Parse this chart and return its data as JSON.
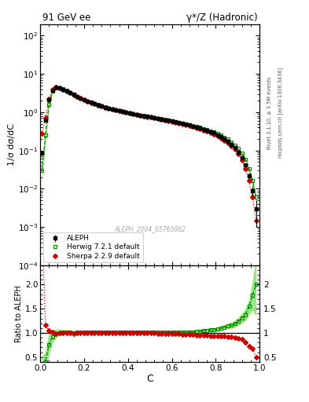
{
  "title_left": "91 GeV ee",
  "title_right": "γ*/Z (Hadronic)",
  "ylabel_main": "1/σ dσ/dC",
  "ylabel_ratio": "Ratio to ALEPH",
  "xlabel": "C",
  "watermark": "ALEPH_2004_S5765862",
  "right_label_top": "Rivet 3.1.10, ≥ 3.5M events",
  "right_label_bot": "mcplots.cern.ch [arXiv:1306.3436]",
  "ylim_main": [
    0.0001,
    200
  ],
  "ylim_ratio": [
    0.4,
    2.4
  ],
  "aleph_x": [
    0.008,
    0.024,
    0.04,
    0.056,
    0.072,
    0.088,
    0.104,
    0.12,
    0.136,
    0.152,
    0.168,
    0.184,
    0.2,
    0.216,
    0.232,
    0.248,
    0.264,
    0.28,
    0.296,
    0.312,
    0.328,
    0.344,
    0.36,
    0.376,
    0.392,
    0.408,
    0.424,
    0.44,
    0.456,
    0.472,
    0.488,
    0.504,
    0.52,
    0.536,
    0.552,
    0.568,
    0.584,
    0.6,
    0.616,
    0.632,
    0.648,
    0.664,
    0.68,
    0.696,
    0.712,
    0.728,
    0.744,
    0.76,
    0.776,
    0.792,
    0.808,
    0.824,
    0.84,
    0.856,
    0.872,
    0.888,
    0.904,
    0.92,
    0.936,
    0.952,
    0.968,
    0.984
  ],
  "aleph_y": [
    0.085,
    0.62,
    2.1,
    3.8,
    4.5,
    4.4,
    4.0,
    3.6,
    3.2,
    2.9,
    2.6,
    2.35,
    2.1,
    1.95,
    1.8,
    1.65,
    1.55,
    1.45,
    1.35,
    1.28,
    1.2,
    1.14,
    1.08,
    1.03,
    0.98,
    0.94,
    0.9,
    0.86,
    0.83,
    0.8,
    0.77,
    0.74,
    0.71,
    0.685,
    0.66,
    0.635,
    0.61,
    0.585,
    0.56,
    0.535,
    0.51,
    0.485,
    0.46,
    0.435,
    0.41,
    0.385,
    0.36,
    0.335,
    0.31,
    0.285,
    0.258,
    0.23,
    0.2,
    0.172,
    0.145,
    0.118,
    0.09,
    0.065,
    0.042,
    0.022,
    0.009,
    0.003
  ],
  "aleph_yerr": [
    0.01,
    0.03,
    0.08,
    0.1,
    0.1,
    0.1,
    0.08,
    0.07,
    0.06,
    0.055,
    0.05,
    0.045,
    0.04,
    0.037,
    0.034,
    0.031,
    0.029,
    0.027,
    0.025,
    0.023,
    0.021,
    0.02,
    0.019,
    0.018,
    0.017,
    0.016,
    0.015,
    0.014,
    0.013,
    0.012,
    0.012,
    0.011,
    0.011,
    0.01,
    0.01,
    0.01,
    0.009,
    0.009,
    0.009,
    0.008,
    0.008,
    0.008,
    0.007,
    0.007,
    0.007,
    0.007,
    0.006,
    0.006,
    0.006,
    0.006,
    0.006,
    0.006,
    0.005,
    0.005,
    0.005,
    0.005,
    0.005,
    0.004,
    0.004,
    0.004,
    0.003,
    0.002
  ],
  "herwig_x": [
    0.008,
    0.024,
    0.04,
    0.056,
    0.072,
    0.088,
    0.104,
    0.12,
    0.136,
    0.152,
    0.168,
    0.184,
    0.2,
    0.216,
    0.232,
    0.248,
    0.264,
    0.28,
    0.296,
    0.312,
    0.328,
    0.344,
    0.36,
    0.376,
    0.392,
    0.408,
    0.424,
    0.44,
    0.456,
    0.472,
    0.488,
    0.504,
    0.52,
    0.536,
    0.552,
    0.568,
    0.584,
    0.6,
    0.616,
    0.632,
    0.648,
    0.664,
    0.68,
    0.696,
    0.712,
    0.728,
    0.744,
    0.76,
    0.776,
    0.792,
    0.808,
    0.824,
    0.84,
    0.856,
    0.872,
    0.888,
    0.904,
    0.92,
    0.936,
    0.952,
    0.968,
    0.984
  ],
  "herwig_y": [
    0.03,
    0.25,
    1.6,
    3.5,
    4.4,
    4.4,
    4.05,
    3.65,
    3.25,
    2.92,
    2.62,
    2.37,
    2.12,
    1.97,
    1.82,
    1.67,
    1.57,
    1.47,
    1.37,
    1.29,
    1.21,
    1.15,
    1.09,
    1.04,
    0.99,
    0.95,
    0.91,
    0.87,
    0.84,
    0.81,
    0.78,
    0.75,
    0.72,
    0.695,
    0.67,
    0.645,
    0.62,
    0.595,
    0.57,
    0.545,
    0.52,
    0.495,
    0.47,
    0.445,
    0.42,
    0.398,
    0.375,
    0.352,
    0.328,
    0.304,
    0.278,
    0.252,
    0.224,
    0.196,
    0.168,
    0.14,
    0.112,
    0.085,
    0.058,
    0.034,
    0.016,
    0.006
  ],
  "herwig_yband_lo": [
    0.015,
    0.15,
    1.1,
    3.0,
    4.0,
    4.1,
    3.8,
    3.45,
    3.1,
    2.78,
    2.5,
    2.27,
    2.04,
    1.89,
    1.75,
    1.61,
    1.51,
    1.42,
    1.33,
    1.25,
    1.17,
    1.11,
    1.06,
    1.01,
    0.96,
    0.92,
    0.88,
    0.845,
    0.815,
    0.785,
    0.755,
    0.727,
    0.698,
    0.672,
    0.647,
    0.622,
    0.597,
    0.573,
    0.549,
    0.524,
    0.5,
    0.476,
    0.451,
    0.427,
    0.403,
    0.381,
    0.358,
    0.336,
    0.312,
    0.289,
    0.264,
    0.238,
    0.211,
    0.184,
    0.157,
    0.13,
    0.103,
    0.077,
    0.052,
    0.03,
    0.013,
    0.004
  ],
  "herwig_yband_hi": [
    0.045,
    0.38,
    2.2,
    4.1,
    4.9,
    4.8,
    4.3,
    3.85,
    3.4,
    3.06,
    2.74,
    2.47,
    2.21,
    2.05,
    1.9,
    1.74,
    1.63,
    1.52,
    1.42,
    1.34,
    1.26,
    1.19,
    1.13,
    1.07,
    1.02,
    0.98,
    0.94,
    0.9,
    0.865,
    0.835,
    0.805,
    0.773,
    0.742,
    0.718,
    0.693,
    0.668,
    0.643,
    0.617,
    0.591,
    0.566,
    0.54,
    0.514,
    0.489,
    0.463,
    0.437,
    0.415,
    0.392,
    0.368,
    0.344,
    0.319,
    0.292,
    0.266,
    0.237,
    0.208,
    0.179,
    0.15,
    0.121,
    0.093,
    0.064,
    0.038,
    0.019,
    0.008
  ],
  "sherpa_x": [
    0.008,
    0.024,
    0.04,
    0.056,
    0.072,
    0.088,
    0.104,
    0.12,
    0.136,
    0.152,
    0.168,
    0.184,
    0.2,
    0.216,
    0.232,
    0.248,
    0.264,
    0.28,
    0.296,
    0.312,
    0.328,
    0.344,
    0.36,
    0.376,
    0.392,
    0.408,
    0.424,
    0.44,
    0.456,
    0.472,
    0.488,
    0.504,
    0.52,
    0.536,
    0.552,
    0.568,
    0.584,
    0.6,
    0.616,
    0.632,
    0.648,
    0.664,
    0.68,
    0.696,
    0.712,
    0.728,
    0.744,
    0.76,
    0.776,
    0.792,
    0.808,
    0.824,
    0.84,
    0.856,
    0.872,
    0.888,
    0.904,
    0.92,
    0.936,
    0.952,
    0.968,
    0.984
  ],
  "sherpa_y": [
    0.28,
    0.72,
    2.2,
    3.85,
    4.45,
    4.38,
    3.98,
    3.58,
    3.18,
    2.87,
    2.58,
    2.33,
    2.09,
    1.94,
    1.79,
    1.64,
    1.54,
    1.44,
    1.34,
    1.27,
    1.19,
    1.13,
    1.075,
    1.025,
    0.975,
    0.935,
    0.895,
    0.855,
    0.825,
    0.795,
    0.765,
    0.735,
    0.705,
    0.678,
    0.652,
    0.626,
    0.6,
    0.574,
    0.548,
    0.522,
    0.496,
    0.47,
    0.444,
    0.418,
    0.392,
    0.367,
    0.342,
    0.317,
    0.292,
    0.267,
    0.241,
    0.214,
    0.186,
    0.159,
    0.132,
    0.106,
    0.08,
    0.056,
    0.034,
    0.016,
    0.006,
    0.0015
  ],
  "sherpa_yband_lo": [
    0.22,
    0.62,
    2.0,
    3.65,
    4.25,
    4.2,
    3.82,
    3.44,
    3.06,
    2.76,
    2.48,
    2.25,
    2.02,
    1.87,
    1.73,
    1.59,
    1.49,
    1.4,
    1.3,
    1.23,
    1.155,
    1.097,
    1.043,
    0.995,
    0.947,
    0.908,
    0.87,
    0.831,
    0.802,
    0.773,
    0.743,
    0.714,
    0.685,
    0.659,
    0.634,
    0.609,
    0.584,
    0.559,
    0.534,
    0.509,
    0.484,
    0.459,
    0.434,
    0.409,
    0.384,
    0.36,
    0.335,
    0.311,
    0.287,
    0.262,
    0.237,
    0.21,
    0.183,
    0.157,
    0.13,
    0.104,
    0.079,
    0.055,
    0.033,
    0.016,
    0.006,
    0.0014
  ],
  "sherpa_yband_hi": [
    0.34,
    0.82,
    2.4,
    4.05,
    4.65,
    4.56,
    4.14,
    3.72,
    3.3,
    2.98,
    2.68,
    2.41,
    2.16,
    2.01,
    1.85,
    1.69,
    1.59,
    1.48,
    1.38,
    1.31,
    1.225,
    1.163,
    1.107,
    1.055,
    1.003,
    0.962,
    0.92,
    0.879,
    0.848,
    0.817,
    0.787,
    0.756,
    0.725,
    0.697,
    0.67,
    0.643,
    0.616,
    0.589,
    0.562,
    0.535,
    0.508,
    0.481,
    0.454,
    0.427,
    0.4,
    0.374,
    0.349,
    0.323,
    0.297,
    0.272,
    0.245,
    0.218,
    0.189,
    0.161,
    0.134,
    0.108,
    0.081,
    0.057,
    0.035,
    0.016,
    0.006,
    0.0016
  ],
  "color_aleph": "#000000",
  "color_herwig": "#008800",
  "color_sherpa": "#cc0000",
  "color_herwig_band_inner": "#88dd88",
  "color_herwig_band_outer": "#ddff99",
  "legend_aleph": "ALEPH",
  "legend_herwig": "Herwig 7.2.1 default",
  "legend_sherpa": "Sherpa 2.2.9 default"
}
